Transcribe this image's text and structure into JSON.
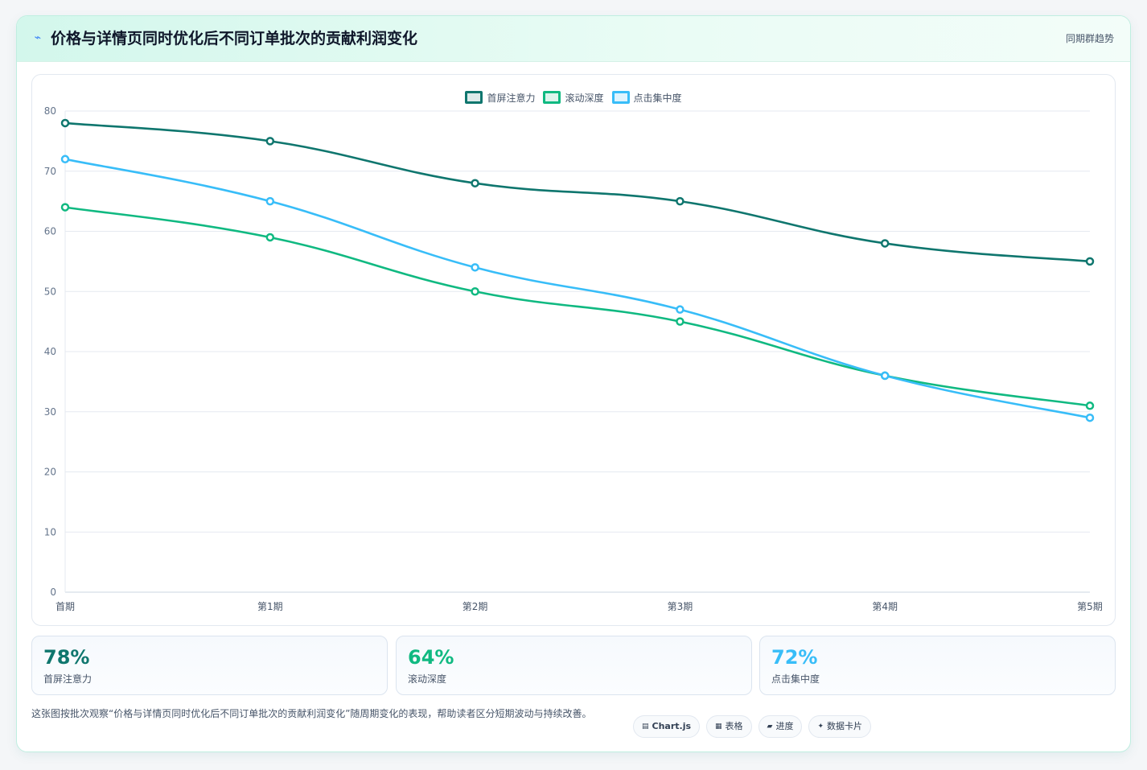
{
  "header": {
    "icon": "lightning-icon",
    "title": "价格与详情页同时优化后不同订单批次的贡献利润变化",
    "tag": "同期群趋势"
  },
  "chart_data": {
    "type": "line",
    "title": "",
    "xlabel": "",
    "ylabel": "",
    "categories": [
      "首期",
      "第1期",
      "第2期",
      "第3期",
      "第4期",
      "第5期"
    ],
    "ylim": [
      0,
      80
    ],
    "yticks": [
      0,
      10,
      20,
      30,
      40,
      50,
      60,
      70,
      80
    ],
    "grid": true,
    "legend_position": "top-center",
    "series": [
      {
        "name": "首屏注意力",
        "color": "#0f766e",
        "values": [
          78,
          75,
          68,
          65,
          58,
          55
        ]
      },
      {
        "name": "滚动深度",
        "color": "#10b981",
        "values": [
          64,
          59,
          50,
          45,
          36,
          31
        ]
      },
      {
        "name": "点击集中度",
        "color": "#38bdf8",
        "values": [
          72,
          65,
          54,
          47,
          36,
          29
        ]
      }
    ]
  },
  "stats": [
    {
      "value": "78%",
      "label": "首屏注意力",
      "color": "#0f766e"
    },
    {
      "value": "64%",
      "label": "滚动深度",
      "color": "#10b981"
    },
    {
      "value": "72%",
      "label": "点击集中度",
      "color": "#38bdf8"
    }
  ],
  "footer": {
    "note": "这张图按批次观察“价格与详情页同时优化后不同订单批次的贡献利润变化”随周期变化的表现，帮助读者区分短期波动与持续改善。",
    "pills": [
      {
        "icon": "table-icon",
        "glyph": "▤",
        "label": "Chart.js"
      },
      {
        "icon": "table-grid-icon",
        "glyph": "▦",
        "label": "表格"
      },
      {
        "icon": "progress-icon",
        "glyph": "▰",
        "label": "进度"
      },
      {
        "icon": "sparkle-icon",
        "glyph": "✦",
        "label": "数据卡片"
      }
    ]
  }
}
